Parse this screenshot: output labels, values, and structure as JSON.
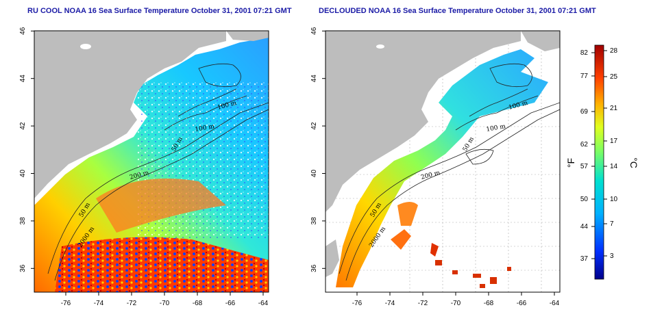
{
  "titles": {
    "left": "RU COOL NOAA 16 Sea Surface Temperature October 31, 2001 07:21 GMT",
    "right": "DECLOUDED NOAA 16 Sea Surface Temperature October 31, 2001 07:21 GMT"
  },
  "axes": {
    "lon_labels": [
      "-76",
      "-74",
      "-72",
      "-70",
      "-68",
      "-66",
      "-64"
    ],
    "lat_labels": [
      "36",
      "38",
      "40",
      "42",
      "44",
      "46"
    ]
  },
  "contours": {
    "left": [
      "100 m",
      "100 m",
      "50 m",
      "200 m",
      "50 m",
      "2000 m"
    ],
    "right": [
      "100 m",
      "100 m",
      "50 m",
      "200 m",
      "50 m",
      "2000 m"
    ]
  },
  "colorbar": {
    "fahrenheit_ticks": [
      "82",
      "77",
      "69",
      "62",
      "57",
      "50",
      "44",
      "37"
    ],
    "celsius_ticks": [
      "28",
      "25",
      "21",
      "17",
      "14",
      "10",
      "7",
      "3"
    ],
    "fahrenheit_unit": "°F",
    "celsius_unit": "°C"
  },
  "colors": {
    "land": "#bdbdbd",
    "title": "#1a1aa6",
    "cold": "#00008b",
    "warm": "#b00000"
  }
}
